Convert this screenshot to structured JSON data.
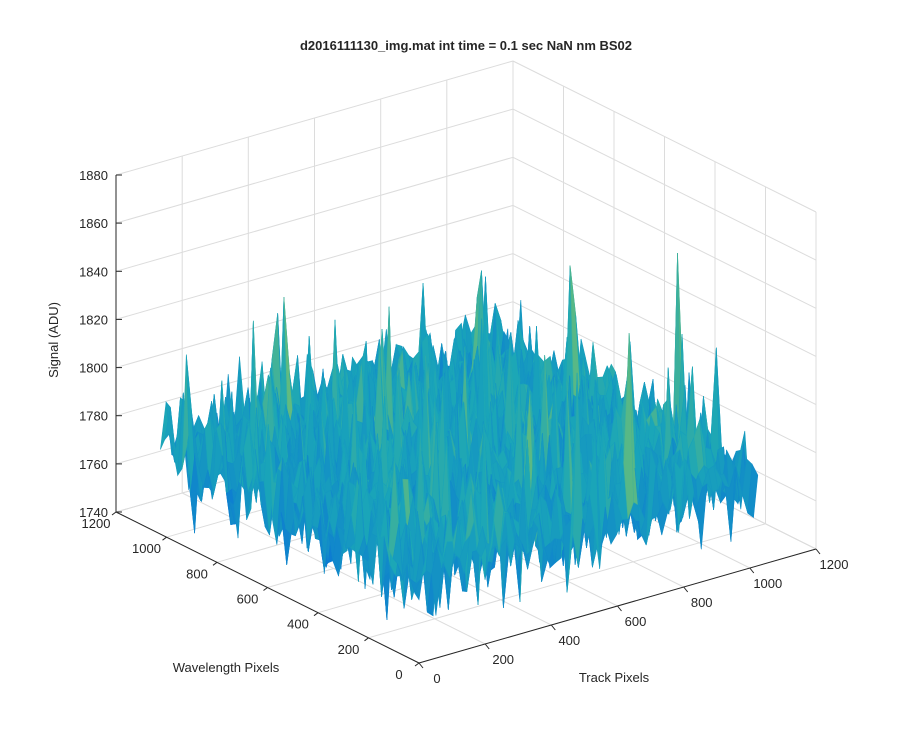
{
  "chart_data": {
    "type": "surface",
    "title": "d2016111130_img.mat int time = 0.1 sec  NaN nm BS02",
    "xlabel": "Track Pixels",
    "ylabel": "Wavelength Pixels",
    "zlabel": "Signal (ADU)",
    "xlim": [
      0,
      1200
    ],
    "ylim": [
      0,
      1200
    ],
    "zlim": [
      1740,
      1880
    ],
    "xticks": [
      "0",
      "200",
      "400",
      "600",
      "800",
      "1000",
      "1200"
    ],
    "yticks": [
      "0",
      "200",
      "400",
      "600",
      "800",
      "1000",
      "1200"
    ],
    "zticks": [
      "1740",
      "1760",
      "1780",
      "1800",
      "1820",
      "1840",
      "1860",
      "1880"
    ],
    "data_extent": {
      "x": [
        0,
        1024
      ],
      "y": [
        0,
        1024
      ]
    },
    "signal_baseline": 1778,
    "signal_range_typical": [
      1755,
      1815
    ],
    "signal_peak_max": 1857,
    "grid": true,
    "colormap": "parula",
    "colors": {
      "low": "#0a72d8",
      "mid": "#1aa6b8",
      "high": "#8ec85a",
      "grid": "#dcdcdc",
      "axis": "#262626"
    }
  }
}
